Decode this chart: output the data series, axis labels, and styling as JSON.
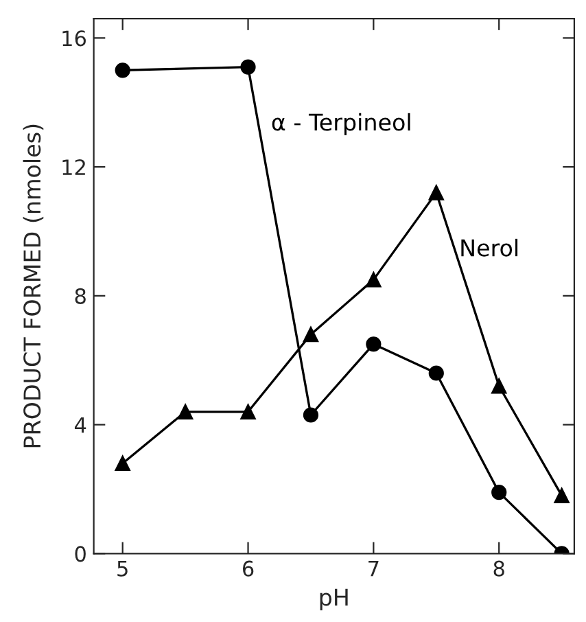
{
  "chart_data": {
    "type": "line",
    "xlabel": "pH",
    "ylabel": "PRODUCT FORMED (nmoles)",
    "x": [
      5,
      5.5,
      6,
      6.5,
      7,
      7.5,
      8,
      8.5
    ],
    "series": [
      {
        "name": "α - Terpineol",
        "color": "#000000",
        "marker": "circle",
        "x": [
          5,
          6,
          6.5,
          7,
          7.5,
          8,
          8.5
        ],
        "values": [
          15.0,
          15.1,
          4.3,
          6.5,
          5.6,
          1.9,
          0
        ]
      },
      {
        "name": "Nerol",
        "color": "#000000",
        "marker": "triangle",
        "values": [
          2.8,
          4.4,
          4.4,
          6.8,
          8.5,
          11.2,
          5.2,
          1.8
        ]
      }
    ],
    "xlim": [
      4.77,
      8.6
    ],
    "ylim": [
      0,
      16.6
    ],
    "xticks": [
      5,
      6,
      7,
      8
    ],
    "yticks": [
      0,
      4,
      8,
      12,
      16
    ],
    "grid": false,
    "legend": false,
    "line_style": "solid"
  }
}
